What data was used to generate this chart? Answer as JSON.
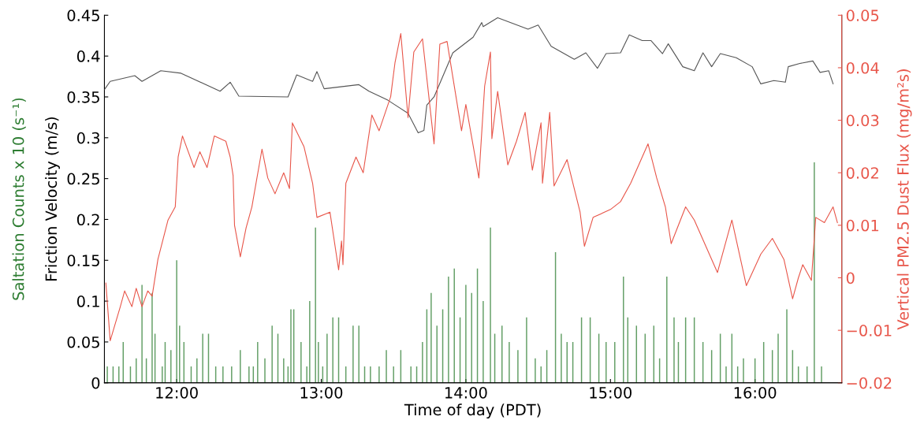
{
  "chart_data": {
    "type": "line",
    "xlabel": "Time of day (PDT)",
    "ylabel": "Friction Velocity (m/s)",
    "y2label": "Vertical PM2.5 Dust Flux (mg/m²s)",
    "xlim": [
      11.5,
      16.6
    ],
    "xticks": [
      {
        "value": 12,
        "label": "12:00"
      },
      {
        "value": 13,
        "label": "13:00"
      },
      {
        "value": 14,
        "label": "14:00"
      },
      {
        "value": 15,
        "label": "15:00"
      },
      {
        "value": 16,
        "label": "16:00"
      }
    ],
    "ylim": [
      0,
      0.45
    ],
    "yticks": [
      0,
      0.05,
      0.1,
      0.15,
      0.2,
      0.25,
      0.3,
      0.35,
      0.4,
      0.45
    ],
    "y2lim": [
      -0.02,
      0.05
    ],
    "y2ticks": [
      {
        "value": -0.02,
        "label": "−0.02"
      },
      {
        "value": -0.01,
        "label": "−0.01"
      },
      0,
      0.01,
      0.02,
      0.03,
      0.04,
      0.05
    ],
    "grid": false,
    "legend": false,
    "marker": "none",
    "line_style": "solid",
    "series": [
      {
        "type": "bar",
        "name": "Saltation Counts x 10 (s⁻¹)",
        "color": "#2e7d32",
        "x": [
          11.52,
          11.56,
          11.6,
          11.63,
          11.68,
          11.72,
          11.76,
          11.79,
          11.83,
          11.85,
          11.9,
          11.92,
          11.96,
          12.0,
          12.02,
          12.05,
          12.1,
          12.14,
          12.18,
          12.22,
          12.27,
          12.32,
          12.38,
          12.44,
          12.5,
          12.53,
          12.56,
          12.61,
          12.66,
          12.7,
          12.74,
          12.77,
          12.79,
          12.81,
          12.86,
          12.9,
          12.92,
          12.96,
          12.98,
          13.01,
          13.04,
          13.08,
          13.12,
          13.17,
          13.22,
          13.26,
          13.3,
          13.34,
          13.4,
          13.45,
          13.5,
          13.55,
          13.62,
          13.66,
          13.7,
          13.73,
          13.76,
          13.8,
          13.84,
          13.88,
          13.92,
          13.96,
          14.0,
          14.04,
          14.08,
          14.12,
          14.17,
          14.2,
          14.25,
          14.3,
          14.36,
          14.42,
          14.48,
          14.52,
          14.56,
          14.62,
          14.66,
          14.7,
          14.74,
          14.8,
          14.86,
          14.92,
          14.97,
          15.03,
          15.09,
          15.12,
          15.18,
          15.24,
          15.3,
          15.34,
          15.39,
          15.44,
          15.47,
          15.52,
          15.58,
          15.64,
          15.7,
          15.76,
          15.8,
          15.84,
          15.88,
          15.92,
          16.0,
          16.06,
          16.12,
          16.16,
          16.22,
          16.26,
          16.3,
          16.36,
          16.41,
          16.46
        ],
        "values": [
          0.02,
          0.02,
          0.02,
          0.05,
          0.02,
          0.03,
          0.12,
          0.03,
          0.11,
          0.06,
          0.02,
          0.05,
          0.04,
          0.15,
          0.07,
          0.05,
          0.02,
          0.03,
          0.06,
          0.06,
          0.02,
          0.02,
          0.02,
          0.04,
          0.02,
          0.02,
          0.05,
          0.03,
          0.07,
          0.06,
          0.03,
          0.02,
          0.09,
          0.09,
          0.05,
          0.02,
          0.1,
          0.19,
          0.05,
          0.02,
          0.06,
          0.08,
          0.08,
          0.02,
          0.07,
          0.07,
          0.02,
          0.02,
          0.02,
          0.04,
          0.02,
          0.04,
          0.02,
          0.02,
          0.05,
          0.09,
          0.11,
          0.07,
          0.09,
          0.13,
          0.14,
          0.08,
          0.12,
          0.11,
          0.14,
          0.1,
          0.19,
          0.06,
          0.07,
          0.05,
          0.04,
          0.08,
          0.03,
          0.02,
          0.04,
          0.16,
          0.06,
          0.05,
          0.05,
          0.08,
          0.08,
          0.06,
          0.05,
          0.05,
          0.13,
          0.08,
          0.07,
          0.06,
          0.07,
          0.03,
          0.13,
          0.08,
          0.05,
          0.08,
          0.08,
          0.05,
          0.04,
          0.06,
          0.02,
          0.06,
          0.02,
          0.03,
          0.03,
          0.05,
          0.04,
          0.06,
          0.09,
          0.04,
          0.02,
          0.02,
          0.27,
          0.02
        ]
      },
      {
        "color": "#555555",
        "x": [
          11.5,
          11.54,
          11.71,
          11.76,
          11.89,
          12.03,
          12.3,
          12.37,
          12.43,
          12.77,
          12.83,
          12.94,
          12.97,
          13.02,
          13.26,
          13.33,
          13.46,
          13.6,
          13.67,
          13.71,
          13.73,
          13.78,
          13.91,
          14.05,
          14.11,
          14.12,
          14.22,
          14.43,
          14.5,
          14.59,
          14.75,
          14.83,
          14.91,
          14.97,
          15.07,
          15.13,
          15.22,
          15.28,
          15.36,
          15.4,
          15.5,
          15.58,
          15.64,
          15.7,
          15.76,
          15.87,
          15.98,
          16.04,
          16.13,
          16.21,
          16.23,
          16.31,
          16.4,
          16.45,
          16.51,
          16.54
        ],
        "values": [
          0.359,
          0.369,
          0.376,
          0.369,
          0.382,
          0.379,
          0.357,
          0.368,
          0.351,
          0.35,
          0.377,
          0.369,
          0.381,
          0.36,
          0.365,
          0.357,
          0.346,
          0.33,
          0.306,
          0.309,
          0.34,
          0.35,
          0.404,
          0.423,
          0.441,
          0.436,
          0.447,
          0.433,
          0.438,
          0.412,
          0.396,
          0.404,
          0.385,
          0.403,
          0.404,
          0.426,
          0.419,
          0.419,
          0.403,
          0.415,
          0.387,
          0.382,
          0.404,
          0.387,
          0.403,
          0.398,
          0.387,
          0.366,
          0.37,
          0.368,
          0.387,
          0.391,
          0.394,
          0.38,
          0.382,
          0.366
        ]
      },
      {
        "axis": "y2",
        "color": "#e8564a",
        "x": [
          11.51,
          11.54,
          11.61,
          11.64,
          11.69,
          11.72,
          11.76,
          11.8,
          11.83,
          11.87,
          11.94,
          11.99,
          12.01,
          12.04,
          12.12,
          12.16,
          12.21,
          12.26,
          12.34,
          12.37,
          12.39,
          12.4,
          12.44,
          12.48,
          12.52,
          12.59,
          12.63,
          12.68,
          12.74,
          12.78,
          12.8,
          12.88,
          12.94,
          12.97,
          13.06,
          13.12,
          13.14,
          13.15,
          13.17,
          13.24,
          13.29,
          13.35,
          13.4,
          13.48,
          13.51,
          13.55,
          13.6,
          13.64,
          13.7,
          13.78,
          13.82,
          13.87,
          13.97,
          14.0,
          14.09,
          14.13,
          14.17,
          14.18,
          14.22,
          14.29,
          14.35,
          14.41,
          14.46,
          14.52,
          14.53,
          14.58,
          14.61,
          14.7,
          14.79,
          14.82,
          14.88,
          15.0,
          15.07,
          15.14,
          15.26,
          15.32,
          15.38,
          15.42,
          15.52,
          15.58,
          15.74,
          15.84,
          15.94,
          16.04,
          16.12,
          16.2,
          16.26,
          16.3,
          16.33,
          16.39,
          16.42,
          16.48,
          16.54,
          16.57
        ],
        "values": [
          -0.001,
          -0.012,
          -0.0055,
          -0.0025,
          -0.0055,
          -0.002,
          -0.0055,
          -0.0025,
          -0.0035,
          0.0035,
          0.011,
          0.0135,
          0.023,
          0.027,
          0.021,
          0.024,
          0.021,
          0.027,
          0.026,
          0.023,
          0.0195,
          0.01,
          0.004,
          0.0095,
          0.0135,
          0.0245,
          0.019,
          0.016,
          0.02,
          0.017,
          0.0295,
          0.025,
          0.018,
          0.0115,
          0.0125,
          0.0015,
          0.007,
          0.0025,
          0.018,
          0.023,
          0.02,
          0.031,
          0.028,
          0.0345,
          0.041,
          0.0465,
          0.0305,
          0.043,
          0.0455,
          0.0255,
          0.0445,
          0.045,
          0.028,
          0.033,
          0.019,
          0.0365,
          0.043,
          0.0265,
          0.0355,
          0.0215,
          0.026,
          0.0315,
          0.0205,
          0.0295,
          0.018,
          0.0315,
          0.0175,
          0.0225,
          0.0125,
          0.006,
          0.0115,
          0.013,
          0.0145,
          0.018,
          0.0255,
          0.019,
          0.0135,
          0.0065,
          0.0135,
          0.011,
          0.001,
          0.011,
          -0.0015,
          0.0045,
          0.0075,
          0.0035,
          -0.004,
          0,
          0.0025,
          -0.0005,
          0.0115,
          0.0105,
          0.0135,
          0.0105
        ]
      }
    ]
  }
}
